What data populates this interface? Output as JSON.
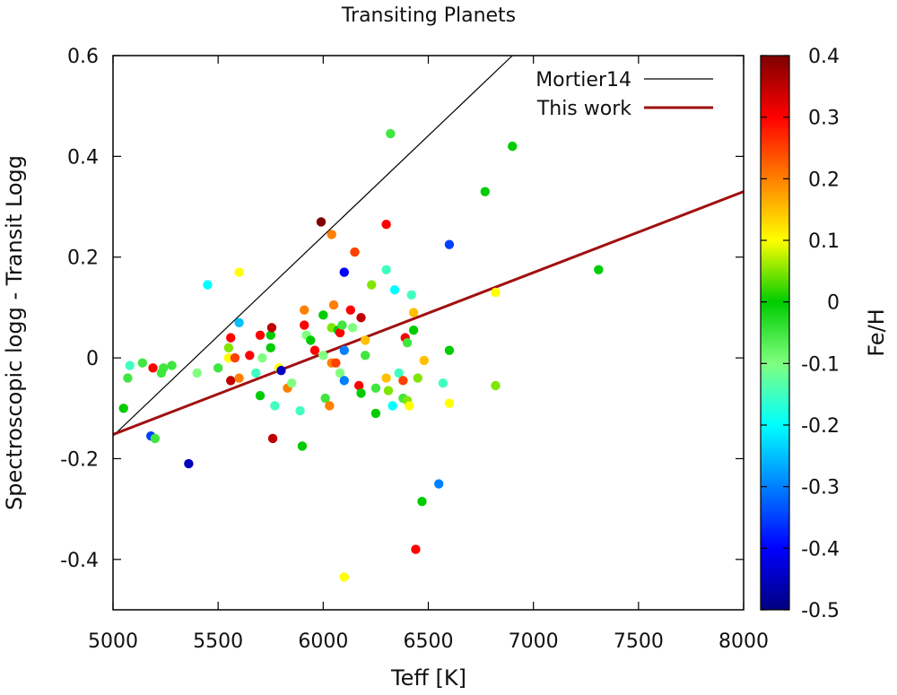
{
  "chart_data": {
    "type": "scatter",
    "title": "Transiting Planets",
    "xlabel": "Teff [K]",
    "ylabel": "Spectroscopic logg - Transit Logg",
    "colorbar_label": "Fe/H",
    "xlim": [
      5000,
      8000
    ],
    "ylim": [
      -0.5,
      0.6
    ],
    "xticks": [
      "5000",
      "5500",
      "6000",
      "6500",
      "7000",
      "7500",
      "8000"
    ],
    "yticks": [
      "-0.4",
      "-0.2",
      "0",
      "0.2",
      "0.4",
      "0.6"
    ],
    "colorbar_range": [
      -0.5,
      0.4
    ],
    "colorbar_ticks": [
      "0.4",
      "0.3",
      "0.2",
      "0.1",
      "0",
      "-0.1",
      "-0.2",
      "-0.3",
      "-0.4",
      "-0.5"
    ],
    "colormap": [
      "#00007f",
      "#0000ff",
      "#0080ff",
      "#00ffff",
      "#80ff80",
      "#00cc00",
      "#ffff00",
      "#ff8000",
      "#ff0000",
      "#7f0000"
    ],
    "grid": false,
    "legend_position": "top-right",
    "legend": [
      {
        "label": "Mortier14",
        "color": "#000000"
      },
      {
        "label": "This work",
        "color": "#a01010"
      }
    ],
    "lines": [
      {
        "name": "Mortier14",
        "x": [
          5000,
          6900
        ],
        "y": [
          -0.155,
          0.6
        ],
        "color": "#000000"
      },
      {
        "name": "This work",
        "x": [
          5000,
          8000
        ],
        "y": [
          -0.152,
          0.33
        ],
        "color": "#a01010"
      }
    ],
    "points": [
      {
        "x": 5050,
        "y": -0.1,
        "feh": 0.0
      },
      {
        "x": 5070,
        "y": -0.04,
        "feh": -0.05
      },
      {
        "x": 5080,
        "y": -0.015,
        "feh": -0.15
      },
      {
        "x": 5140,
        "y": -0.01,
        "feh": -0.05
      },
      {
        "x": 5180,
        "y": -0.155,
        "feh": -0.35
      },
      {
        "x": 5190,
        "y": -0.02,
        "feh": 0.3
      },
      {
        "x": 5200,
        "y": -0.16,
        "feh": -0.05
      },
      {
        "x": 5230,
        "y": -0.03,
        "feh": -0.05
      },
      {
        "x": 5240,
        "y": -0.02,
        "feh": -0.05
      },
      {
        "x": 5280,
        "y": -0.015,
        "feh": -0.05
      },
      {
        "x": 5360,
        "y": -0.21,
        "feh": -0.45
      },
      {
        "x": 5400,
        "y": -0.03,
        "feh": -0.1
      },
      {
        "x": 5450,
        "y": 0.145,
        "feh": -0.2
      },
      {
        "x": 5500,
        "y": -0.02,
        "feh": -0.05
      },
      {
        "x": 5550,
        "y": 0.02,
        "feh": 0.05
      },
      {
        "x": 5550,
        "y": 0.0,
        "feh": 0.1
      },
      {
        "x": 5560,
        "y": -0.045,
        "feh": 0.35
      },
      {
        "x": 5560,
        "y": 0.04,
        "feh": 0.3
      },
      {
        "x": 5580,
        "y": 0.0,
        "feh": 0.25
      },
      {
        "x": 5600,
        "y": 0.17,
        "feh": 0.1
      },
      {
        "x": 5600,
        "y": 0.07,
        "feh": -0.25
      },
      {
        "x": 5600,
        "y": -0.04,
        "feh": 0.2
      },
      {
        "x": 5650,
        "y": 0.005,
        "feh": 0.3
      },
      {
        "x": 5680,
        "y": -0.03,
        "feh": -0.15
      },
      {
        "x": 5700,
        "y": 0.045,
        "feh": 0.3
      },
      {
        "x": 5700,
        "y": -0.075,
        "feh": 0.0
      },
      {
        "x": 5710,
        "y": 0.0,
        "feh": -0.1
      },
      {
        "x": 5750,
        "y": 0.045,
        "feh": 0.0
      },
      {
        "x": 5750,
        "y": 0.02,
        "feh": 0.0
      },
      {
        "x": 5755,
        "y": 0.06,
        "feh": 0.35
      },
      {
        "x": 5760,
        "y": -0.16,
        "feh": 0.35
      },
      {
        "x": 5770,
        "y": -0.095,
        "feh": -0.15
      },
      {
        "x": 5790,
        "y": -0.02,
        "feh": 0.1
      },
      {
        "x": 5800,
        "y": -0.025,
        "feh": -0.45
      },
      {
        "x": 5830,
        "y": -0.06,
        "feh": 0.2
      },
      {
        "x": 5850,
        "y": -0.05,
        "feh": -0.1
      },
      {
        "x": 5890,
        "y": -0.105,
        "feh": -0.15
      },
      {
        "x": 5900,
        "y": -0.175,
        "feh": 0.0
      },
      {
        "x": 5910,
        "y": 0.095,
        "feh": 0.2
      },
      {
        "x": 5910,
        "y": 0.065,
        "feh": 0.3
      },
      {
        "x": 5920,
        "y": 0.045,
        "feh": -0.1
      },
      {
        "x": 5940,
        "y": 0.035,
        "feh": 0.0
      },
      {
        "x": 5960,
        "y": 0.015,
        "feh": 0.3
      },
      {
        "x": 5990,
        "y": 0.27,
        "feh": 0.4
      },
      {
        "x": 6000,
        "y": 0.085,
        "feh": 0.0
      },
      {
        "x": 6000,
        "y": 0.005,
        "feh": -0.1
      },
      {
        "x": 6010,
        "y": -0.08,
        "feh": -0.05
      },
      {
        "x": 6030,
        "y": -0.095,
        "feh": 0.2
      },
      {
        "x": 6040,
        "y": 0.245,
        "feh": 0.2
      },
      {
        "x": 6040,
        "y": 0.06,
        "feh": 0.05
      },
      {
        "x": 6040,
        "y": -0.01,
        "feh": 0.2
      },
      {
        "x": 6050,
        "y": 0.105,
        "feh": 0.2
      },
      {
        "x": 6060,
        "y": -0.01,
        "feh": 0.25
      },
      {
        "x": 6070,
        "y": 0.055,
        "feh": 0.0
      },
      {
        "x": 6080,
        "y": 0.05,
        "feh": 0.3
      },
      {
        "x": 6080,
        "y": -0.03,
        "feh": -0.1
      },
      {
        "x": 6090,
        "y": 0.065,
        "feh": -0.05
      },
      {
        "x": 6100,
        "y": 0.17,
        "feh": -0.4
      },
      {
        "x": 6100,
        "y": 0.015,
        "feh": -0.3
      },
      {
        "x": 6100,
        "y": -0.045,
        "feh": -0.3
      },
      {
        "x": 6100,
        "y": -0.435,
        "feh": 0.1
      },
      {
        "x": 6130,
        "y": 0.095,
        "feh": 0.3
      },
      {
        "x": 6140,
        "y": 0.06,
        "feh": -0.1
      },
      {
        "x": 6150,
        "y": 0.21,
        "feh": 0.25
      },
      {
        "x": 6170,
        "y": -0.055,
        "feh": 0.3
      },
      {
        "x": 6180,
        "y": 0.08,
        "feh": 0.35
      },
      {
        "x": 6180,
        "y": -0.07,
        "feh": 0.0
      },
      {
        "x": 6200,
        "y": 0.035,
        "feh": 0.15
      },
      {
        "x": 6200,
        "y": 0.005,
        "feh": -0.05
      },
      {
        "x": 6230,
        "y": 0.145,
        "feh": 0.05
      },
      {
        "x": 6250,
        "y": -0.06,
        "feh": -0.05
      },
      {
        "x": 6250,
        "y": -0.11,
        "feh": 0.0
      },
      {
        "x": 6300,
        "y": 0.265,
        "feh": 0.3
      },
      {
        "x": 6300,
        "y": 0.175,
        "feh": -0.15
      },
      {
        "x": 6300,
        "y": -0.04,
        "feh": 0.15
      },
      {
        "x": 6310,
        "y": -0.065,
        "feh": 0.05
      },
      {
        "x": 6320,
        "y": 0.445,
        "feh": -0.05
      },
      {
        "x": 6330,
        "y": -0.095,
        "feh": -0.2
      },
      {
        "x": 6340,
        "y": 0.135,
        "feh": -0.2
      },
      {
        "x": 6360,
        "y": -0.03,
        "feh": -0.15
      },
      {
        "x": 6380,
        "y": -0.045,
        "feh": 0.25
      },
      {
        "x": 6380,
        "y": -0.08,
        "feh": -0.05
      },
      {
        "x": 6390,
        "y": 0.04,
        "feh": 0.3
      },
      {
        "x": 6400,
        "y": 0.03,
        "feh": -0.05
      },
      {
        "x": 6400,
        "y": -0.085,
        "feh": 0.05
      },
      {
        "x": 6410,
        "y": -0.095,
        "feh": 0.1
      },
      {
        "x": 6420,
        "y": 0.125,
        "feh": -0.15
      },
      {
        "x": 6430,
        "y": 0.055,
        "feh": 0.0
      },
      {
        "x": 6430,
        "y": 0.09,
        "feh": 0.15
      },
      {
        "x": 6440,
        "y": -0.38,
        "feh": 0.3
      },
      {
        "x": 6450,
        "y": -0.04,
        "feh": 0.05
      },
      {
        "x": 6470,
        "y": -0.285,
        "feh": 0.0
      },
      {
        "x": 6480,
        "y": -0.005,
        "feh": 0.15
      },
      {
        "x": 6550,
        "y": -0.25,
        "feh": -0.3
      },
      {
        "x": 6570,
        "y": -0.05,
        "feh": -0.15
      },
      {
        "x": 6600,
        "y": 0.225,
        "feh": -0.35
      },
      {
        "x": 6600,
        "y": 0.015,
        "feh": 0.0
      },
      {
        "x": 6600,
        "y": -0.09,
        "feh": 0.1
      },
      {
        "x": 6770,
        "y": 0.33,
        "feh": 0.0
      },
      {
        "x": 6820,
        "y": 0.13,
        "feh": 0.1
      },
      {
        "x": 6820,
        "y": -0.055,
        "feh": 0.05
      },
      {
        "x": 6900,
        "y": 0.42,
        "feh": 0.0
      },
      {
        "x": 7310,
        "y": 0.175,
        "feh": 0.0
      }
    ]
  }
}
